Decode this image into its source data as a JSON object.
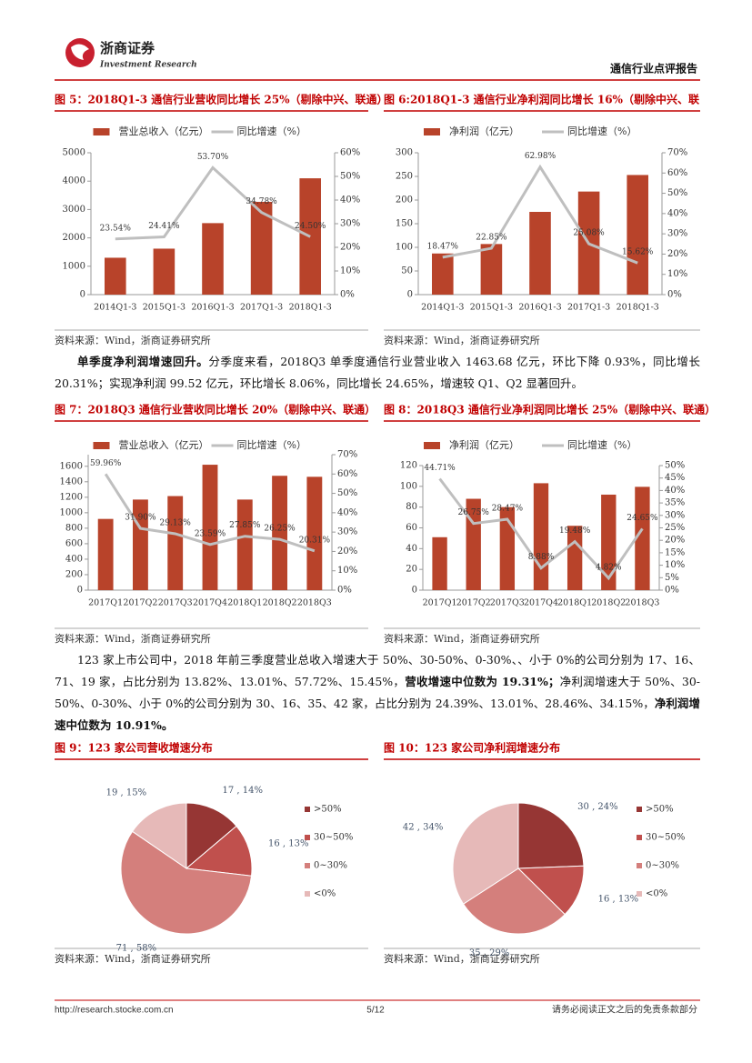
{
  "header": {
    "logo_name": "浙商证券",
    "logo_sub": "Investment Research",
    "report_title": "通信行业点评报告"
  },
  "chart_data": [
    {
      "type": "combo",
      "title": "图 5：2018Q1-3 通信行业营收同比增长 25%（剔除中兴、联通）",
      "source": "资料来源：Wind，浙商证券研究所",
      "categories": [
        "2014Q1-3",
        "2015Q1-3",
        "2016Q1-3",
        "2017Q1-3",
        "2018Q1-3"
      ],
      "series": [
        {
          "name": "营业总收入（亿元）",
          "type": "bar",
          "color": "#b8432a",
          "values": [
            1300,
            1620,
            2520,
            3270,
            4100
          ]
        },
        {
          "name": "同比增速（%）",
          "type": "line",
          "axis": "y2",
          "color": "#bfbfbf",
          "values": [
            23.54,
            24.41,
            53.7,
            34.78,
            24.5
          ],
          "value_labels": [
            "23.54%",
            "24.41%",
            "53.70%",
            "34.78%",
            "24.50%"
          ]
        }
      ],
      "ylim": [
        0,
        5000
      ],
      "yticks": [
        0,
        1000,
        2000,
        3000,
        4000,
        5000
      ],
      "y2lim": [
        0,
        60
      ],
      "y2ticks": [
        {
          "value": 0,
          "label": "0%"
        },
        {
          "value": 10,
          "label": "10%"
        },
        {
          "value": 20,
          "label": "20%"
        },
        {
          "value": 30,
          "label": "30%"
        },
        {
          "value": 40,
          "label": "40%"
        },
        {
          "value": 50,
          "label": "50%"
        },
        {
          "value": 60,
          "label": "60%"
        }
      ]
    },
    {
      "type": "combo",
      "title": "图 6:2018Q1-3 通信行业净利润同比增长 16%（剔除中兴、联",
      "source": "资料来源：Wind，浙商证券研究所",
      "categories": [
        "2014Q1-3",
        "2015Q1-3",
        "2016Q1-3",
        "2017Q1-3",
        "2018Q1-3"
      ],
      "series": [
        {
          "name": "净利润（亿元）",
          "type": "bar",
          "color": "#b8432a",
          "values": [
            87,
            107,
            175,
            218,
            253
          ]
        },
        {
          "name": "同比增速（%）",
          "type": "line",
          "axis": "y2",
          "color": "#bfbfbf",
          "values": [
            18.47,
            22.85,
            62.98,
            25.08,
            15.62
          ],
          "value_labels": [
            "18.47%",
            "22.85%",
            "62.98%",
            "25.08%",
            "15.62%"
          ]
        }
      ],
      "ylim": [
        0,
        300
      ],
      "yticks": [
        0,
        50,
        100,
        150,
        200,
        250,
        300
      ],
      "y2lim": [
        0,
        70
      ],
      "y2ticks": [
        {
          "value": 0,
          "label": "0%"
        },
        {
          "value": 10,
          "label": "10%"
        },
        {
          "value": 20,
          "label": "20%"
        },
        {
          "value": 30,
          "label": "30%"
        },
        {
          "value": 40,
          "label": "40%"
        },
        {
          "value": 50,
          "label": "50%"
        },
        {
          "value": 60,
          "label": "60%"
        },
        {
          "value": 70,
          "label": "70%"
        }
      ]
    },
    {
      "type": "combo",
      "title": "图 7：2018Q3 通信行业营收同比增长 20%（剔除中兴、联通）",
      "source": "资料来源：Wind，浙商证券研究所",
      "categories": [
        "2017Q1",
        "2017Q2",
        "2017Q3",
        "2017Q4",
        "2018Q1",
        "2018Q2",
        "2018Q3"
      ],
      "series": [
        {
          "name": "营业总收入（亿元）",
          "type": "bar",
          "color": "#b8432a",
          "values": [
            920,
            1170,
            1215,
            1620,
            1170,
            1477,
            1464
          ]
        },
        {
          "name": "同比增速（%）",
          "type": "line",
          "axis": "y2",
          "color": "#bfbfbf",
          "values": [
            59.96,
            31.9,
            29.13,
            23.59,
            27.85,
            26.25,
            20.31
          ],
          "value_labels": [
            "59.96%",
            "31.90%",
            "29.13%",
            "23.59%",
            "27.85%",
            "26.25%",
            "20.31%"
          ]
        }
      ],
      "ylim": [
        0,
        1750
      ],
      "yticks": [
        0,
        200,
        400,
        600,
        800,
        1000,
        1200,
        1400,
        1600
      ],
      "y2lim": [
        0,
        70
      ],
      "y2ticks": [
        {
          "value": 0,
          "label": "0%"
        },
        {
          "value": 10,
          "label": "10%"
        },
        {
          "value": 20,
          "label": "20%"
        },
        {
          "value": 30,
          "label": "30%"
        },
        {
          "value": 40,
          "label": "40%"
        },
        {
          "value": 50,
          "label": "50%"
        },
        {
          "value": 60,
          "label": "60%"
        },
        {
          "value": 70,
          "label": "70%"
        }
      ]
    },
    {
      "type": "combo",
      "title": "图 8：2018Q3 通信行业净利润同比增长 25%（剔除中兴、联通）",
      "source": "资料来源：Wind，浙商证券研究所",
      "categories": [
        "2017Q1",
        "2017Q2",
        "2017Q3",
        "2017Q4",
        "2018Q1",
        "2018Q2",
        "2018Q3"
      ],
      "series": [
        {
          "name": "净利润（亿元）",
          "type": "bar",
          "color": "#b8432a",
          "values": [
            51,
            88,
            80,
            103,
            62,
            92,
            99.52
          ]
        },
        {
          "name": "同比增速（%）",
          "type": "line",
          "axis": "y2",
          "color": "#bfbfbf",
          "values": [
            44.71,
            26.75,
            28.47,
            8.88,
            19.48,
            4.82,
            24.65
          ],
          "value_labels": [
            "44.71%",
            "26.75%",
            "28.47%",
            "8.88%",
            "19.48%",
            "4.82%",
            "24.65%"
          ]
        }
      ],
      "ylim": [
        0,
        120
      ],
      "yticks": [
        0,
        20,
        40,
        60,
        80,
        100,
        120
      ],
      "y2lim": [
        0,
        50
      ],
      "y2ticks": [
        {
          "value": 0,
          "label": "0%"
        },
        {
          "value": 5,
          "label": "5%"
        },
        {
          "value": 10,
          "label": "10%"
        },
        {
          "value": 15,
          "label": "15%"
        },
        {
          "value": 20,
          "label": "20%"
        },
        {
          "value": 25,
          "label": "25%"
        },
        {
          "value": 30,
          "label": "30%"
        },
        {
          "value": 35,
          "label": "35%"
        },
        {
          "value": 40,
          "label": "40%"
        },
        {
          "value": 45,
          "label": "45%"
        },
        {
          "value": 50,
          "label": "50%"
        }
      ]
    },
    {
      "type": "pie",
      "title": "图 9：123 家公司营收增速分布",
      "source": "资料来源：Wind，浙商证券研究所",
      "categories": [
        ">50%",
        "30~50%",
        "0~30%",
        "<0%"
      ],
      "values": [
        17,
        16,
        71,
        19
      ],
      "value_labels": [
        "17 , 14%",
        "16 , 13%",
        "71 , 58%",
        "19 , 15%"
      ],
      "colors": [
        "#963634",
        "#c0504d",
        "#d47f7c",
        "#e6b9b8"
      ]
    },
    {
      "type": "pie",
      "title": "图 10：123 家公司净利润增速分布",
      "source": "资料来源：Wind，浙商证券研究所",
      "categories": [
        ">50%",
        "30~50%",
        "0~30%",
        "<0%"
      ],
      "values": [
        30,
        16,
        35,
        42
      ],
      "value_labels": [
        "30 , 24%",
        "16 , 13%",
        "35 , 29%",
        "42 , 34%"
      ],
      "colors": [
        "#963634",
        "#c0504d",
        "#d47f7c",
        "#e6b9b8"
      ]
    }
  ],
  "paragraphs": [
    [
      {
        "text": "单季度净利润增速回升。",
        "bold": true
      },
      {
        "text": "分季度来看，2018Q3 单季度通信行业营业收入 1463.68 亿元，环比下降 0.93%，同比增长 20.31%；实现净利润 99.52 亿元，环比增长 8.06%，同比增长 24.65%，增速较 Q1、Q2 显著回升。",
        "bold": false
      }
    ],
    [
      {
        "text": "123 家上市公司中，2018 年前三季度营业总收入增速大于 50%、30-50%、0-30%、、小于 0%的公司分别为 17、16、71、19 家，占比分别为 13.82%、13.01%、57.72%、15.45%，",
        "bold": false
      },
      {
        "text": "营收增速中位数为 19.31%；",
        "bold": true
      },
      {
        "text": "净利润增速大于 50%、30-50%、0-30%、小于 0%的公司分别为 30、16、35、42 家，占比分别为 24.39%、13.01%、28.46%、34.15%，",
        "bold": false
      },
      {
        "text": "净利润增速中位数为 10.91%。",
        "bold": true
      }
    ]
  ],
  "footer": {
    "url": "http://research.stocke.com.cn",
    "page": "5/12",
    "disclaimer": "请务必阅读正文之后的免责条款部分"
  }
}
